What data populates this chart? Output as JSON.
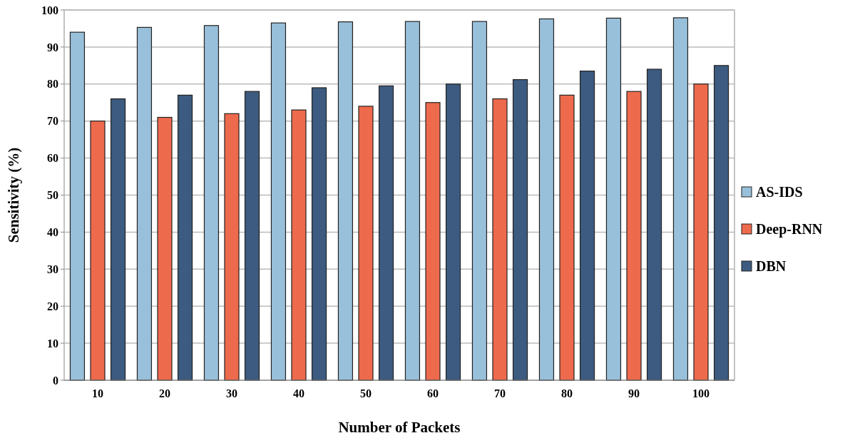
{
  "chart_data": {
    "type": "bar",
    "xlabel": "Number of Packets",
    "ylabel": "Sensitivity (%)",
    "categories": [
      "10",
      "20",
      "30",
      "40",
      "50",
      "60",
      "70",
      "80",
      "90",
      "100"
    ],
    "series": [
      {
        "name": "AS-IDS",
        "color": "#99c0da",
        "values": [
          94,
          95.3,
          95.8,
          96.5,
          96.8,
          96.9,
          96.9,
          97.6,
          97.8,
          97.9
        ]
      },
      {
        "name": "Deep-RNN",
        "color": "#ee6a4c",
        "values": [
          70,
          71,
          72,
          73,
          74,
          75,
          76,
          77,
          78,
          80
        ]
      },
      {
        "name": "DBN",
        "color": "#3d5b80",
        "values": [
          76,
          77,
          78,
          79,
          79.5,
          80,
          81.2,
          83.5,
          84,
          85
        ]
      }
    ],
    "ylim": [
      0,
      100
    ],
    "yticks": [
      0,
      10,
      20,
      30,
      40,
      50,
      60,
      70,
      80,
      90,
      100
    ],
    "grid": "y",
    "legend": "right"
  }
}
